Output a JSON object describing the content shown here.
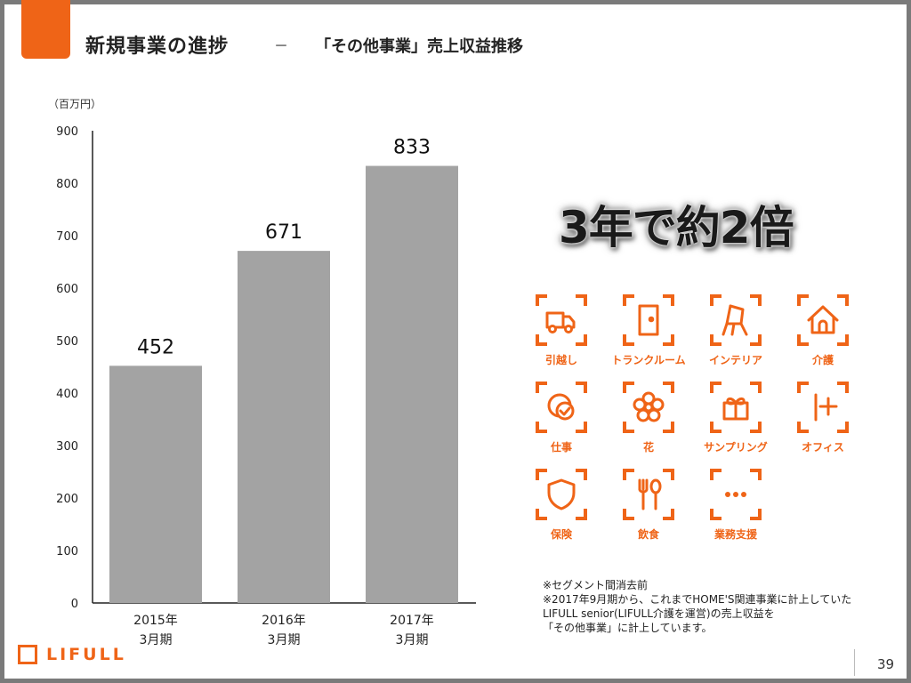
{
  "header": {
    "title": "新規事業の進捗",
    "dash": "－",
    "subtitle": "「その他事業」売上収益推移"
  },
  "highlight": "3年で約2倍",
  "chart_data": {
    "type": "bar",
    "unit": "（百万円）",
    "categories": [
      {
        "year": "2015年",
        "period": "3月期"
      },
      {
        "year": "2016年",
        "period": "3月期"
      },
      {
        "year": "2017年",
        "period": "3月期"
      }
    ],
    "values": [
      452,
      671,
      833
    ],
    "data_labels": [
      "452",
      "671",
      "833"
    ],
    "ylim": [
      0,
      900
    ],
    "yticks": [
      0,
      100,
      200,
      300,
      400,
      500,
      600,
      700,
      800,
      900
    ],
    "bar_color": "#a3a3a3",
    "grid": false
  },
  "categories": [
    {
      "label": "引越し",
      "icon": "truck-icon"
    },
    {
      "label": "トランクルーム",
      "icon": "storage-door-icon"
    },
    {
      "label": "インテリア",
      "icon": "chair-icon"
    },
    {
      "label": "介護",
      "icon": "care-home-icon"
    },
    {
      "label": "仕事",
      "icon": "work-icon"
    },
    {
      "label": "花",
      "icon": "flower-icon"
    },
    {
      "label": "サンプリング",
      "icon": "gift-icon"
    },
    {
      "label": "オフィス",
      "icon": "office-icon"
    },
    {
      "label": "保険",
      "icon": "shield-icon"
    },
    {
      "label": "飲食",
      "icon": "fork-spoon-icon"
    },
    {
      "label": "業務支援",
      "icon": "dots-icon"
    }
  ],
  "notes": [
    "※セグメント間消去前",
    "※2017年9月期から、これまでHOME'S関連事業に計上していた",
    "LIFULL senior(LIFULL介護を運営)の売上収益を",
    "「その他事業」に計上しています。"
  ],
  "footer": {
    "logo": "LIFULL",
    "page": "39"
  },
  "colors": {
    "accent": "#ef6417",
    "bar": "#a3a3a3"
  }
}
